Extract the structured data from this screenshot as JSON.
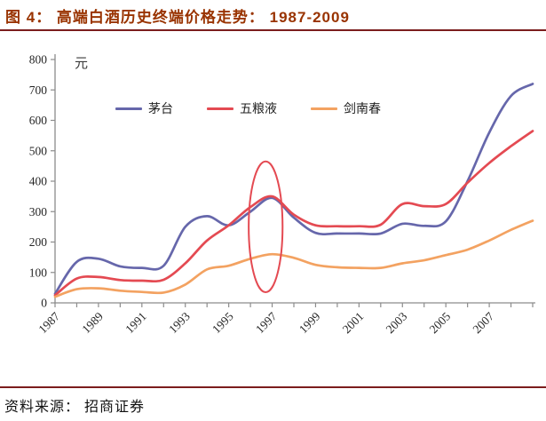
{
  "header": {
    "title": "图 4：  高端白酒历史终端价格走势：  1987-2009"
  },
  "footer": {
    "source": "资料来源：  招商证券"
  },
  "colors": {
    "accent_title": "#993300",
    "divider": "#7b1d1d",
    "axis_line": "#8c8c8c",
    "axis_text": "#262626",
    "annotation": "#e44a52"
  },
  "chart_data": {
    "type": "line",
    "title": "高端白酒历史终端价格走势 1987-2009",
    "unit_label": "元",
    "xlabel": "",
    "ylabel": "元",
    "ylim": [
      0,
      800
    ],
    "y_ticks": [
      0,
      100,
      200,
      300,
      400,
      500,
      600,
      700,
      800
    ],
    "x": [
      1987,
      1988,
      1989,
      1990,
      1991,
      1992,
      1993,
      1994,
      1995,
      1996,
      1997,
      1998,
      1999,
      2000,
      2001,
      2002,
      2003,
      2004,
      2005,
      2006,
      2007,
      2008,
      2009
    ],
    "x_tick_labels": [
      "1987",
      "1989",
      "1991",
      "1993",
      "1995",
      "1997",
      "1999",
      "2001",
      "2003",
      "2005",
      "2007"
    ],
    "grid": false,
    "legend_position": "top-center",
    "smoothed_lines": true,
    "series": [
      {
        "name": "茅台",
        "color": "#6667ab",
        "values": [
          30,
          135,
          145,
          120,
          115,
          122,
          250,
          285,
          255,
          300,
          345,
          280,
          230,
          228,
          228,
          228,
          260,
          253,
          268,
          400,
          560,
          680,
          720
        ]
      },
      {
        "name": "五粮液",
        "color": "#e44a52",
        "values": [
          25,
          80,
          85,
          75,
          73,
          76,
          130,
          205,
          255,
          315,
          350,
          290,
          255,
          252,
          252,
          257,
          325,
          318,
          325,
          395,
          460,
          515,
          565
        ]
      },
      {
        "name": "剑南春",
        "color": "#f3a261",
        "values": [
          20,
          45,
          48,
          40,
          36,
          34,
          60,
          110,
          122,
          145,
          160,
          148,
          125,
          117,
          115,
          115,
          130,
          140,
          157,
          175,
          205,
          240,
          270
        ]
      }
    ],
    "annotation": {
      "shape": "ellipse",
      "center_year": 1996.7,
      "value_span": [
        35,
        465
      ],
      "year_half_width": 0.78,
      "color": "#e44a52",
      "meaning": "highlights 1997 price peak"
    }
  }
}
